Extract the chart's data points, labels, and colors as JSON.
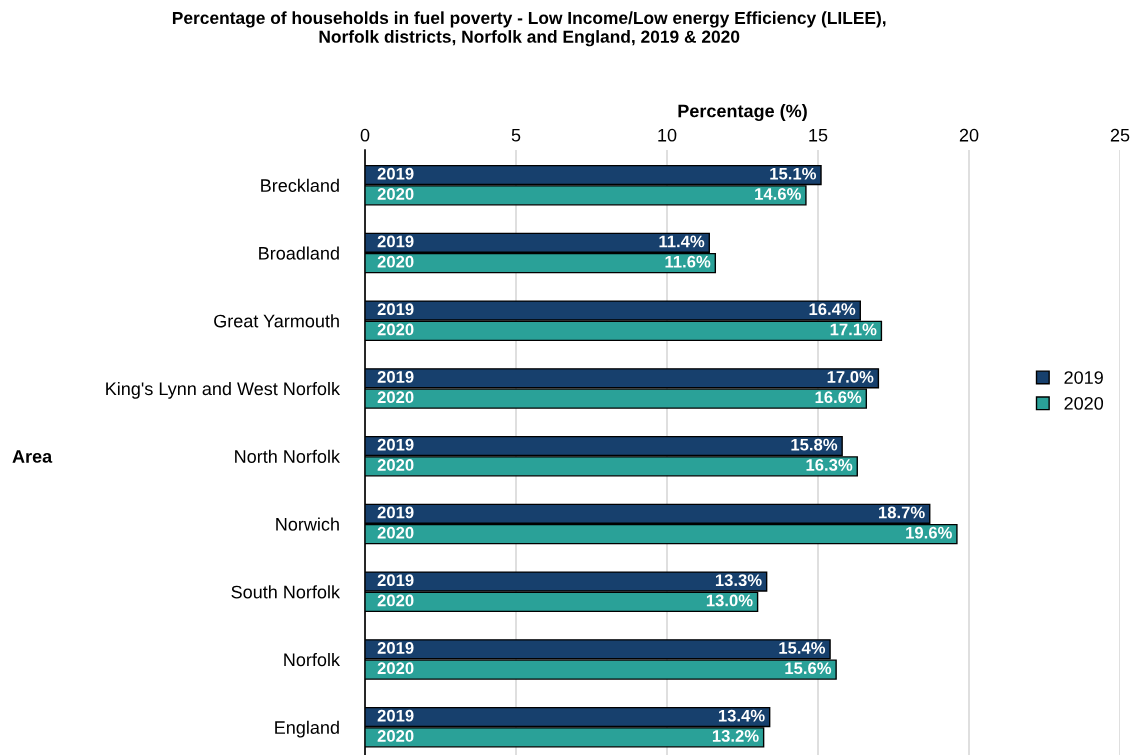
{
  "chart_data": {
    "type": "bar",
    "orientation": "horizontal",
    "title": "Percentage of households in fuel poverty - Low Income/Low energy Efficiency (LILEE),\nNorfolk districts, Norfolk and England, 2019 & 2020",
    "xlabel": "Percentage (%)",
    "ylabel": "Area",
    "categories": [
      "Breckland",
      "Broadland",
      "Great Yarmouth",
      "King's Lynn and West Norfolk",
      "North Norfolk",
      "Norwich",
      "South Norfolk",
      "Norfolk",
      "England"
    ],
    "series": [
      {
        "name": "2019",
        "color": "#17406d",
        "values": [
          15.1,
          11.4,
          16.4,
          17.0,
          15.8,
          18.7,
          13.3,
          15.4,
          13.4
        ],
        "value_labels": [
          "15.1%",
          "11.4%",
          "16.4%",
          "17.0%",
          "15.8%",
          "18.7%",
          "13.3%",
          "15.4%",
          "13.4%"
        ]
      },
      {
        "name": "2020",
        "color": "#2aa198",
        "values": [
          14.6,
          11.6,
          17.1,
          16.6,
          16.3,
          19.6,
          13.0,
          15.6,
          13.2
        ],
        "value_labels": [
          "14.6%",
          "11.6%",
          "17.1%",
          "16.6%",
          "16.3%",
          "19.6%",
          "13.0%",
          "15.6%",
          "13.2%"
        ]
      }
    ],
    "xlim": [
      0,
      25
    ],
    "xticks": [
      0,
      5,
      10,
      15,
      20,
      25
    ],
    "grid": "x",
    "legend": "right"
  }
}
